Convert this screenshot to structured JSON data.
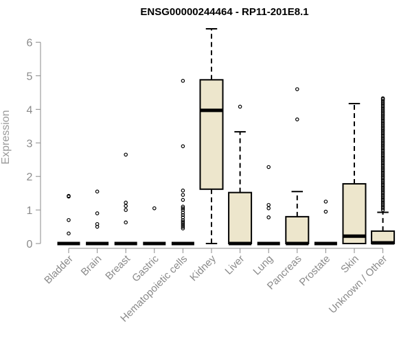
{
  "chart_data": {
    "type": "box",
    "title": "ENSG00000244464 - RP11-201E8.1",
    "xlabel": "",
    "ylabel": "Expression",
    "ylim": [
      0,
      6.4
    ],
    "yticks": [
      0,
      1,
      2,
      3,
      4,
      5,
      6
    ],
    "box_fill": "#ede6cc",
    "categories": [
      "Bladder",
      "Brain",
      "Breast",
      "Gastric",
      "Hematopoietic cells",
      "Kidney",
      "Liver",
      "Lung",
      "Pancreas",
      "Prostate",
      "Skin",
      "Unknown / Other"
    ],
    "series": [
      {
        "q1": 0,
        "median": 0,
        "q3": 0,
        "whisker_low": 0,
        "whisker_high": 0,
        "outliers": [
          0.3,
          0.7,
          1.4,
          1.42
        ]
      },
      {
        "q1": 0,
        "median": 0,
        "q3": 0,
        "whisker_low": 0,
        "whisker_high": 0,
        "outliers": [
          0.5,
          0.58,
          0.9,
          1.55
        ]
      },
      {
        "q1": 0,
        "median": 0,
        "q3": 0,
        "whisker_low": 0,
        "whisker_high": 0,
        "outliers": [
          0.63,
          1.0,
          1.12,
          1.22,
          2.65
        ]
      },
      {
        "q1": 0,
        "median": 0,
        "q3": 0,
        "whisker_low": 0,
        "whisker_high": 0,
        "outliers": [
          1.05
        ]
      },
      {
        "q1": 0,
        "median": 0,
        "q3": 0,
        "whisker_low": 0,
        "whisker_high": 0,
        "outliers": [
          0.45,
          0.5,
          0.55,
          0.6,
          0.65,
          0.7,
          0.78,
          0.85,
          0.92,
          1.0,
          1.05,
          1.1,
          1.3,
          1.45,
          1.58,
          2.9,
          4.85
        ]
      },
      {
        "q1": 1.62,
        "median": 3.97,
        "q3": 4.88,
        "whisker_low": 0,
        "whisker_high": 6.4,
        "outliers": []
      },
      {
        "q1": 0,
        "median": 0,
        "q3": 1.52,
        "whisker_low": 0,
        "whisker_high": 3.33,
        "outliers": [
          4.08
        ]
      },
      {
        "q1": 0,
        "median": 0,
        "q3": 0,
        "whisker_low": 0,
        "whisker_high": 0,
        "outliers": [
          0.78,
          1.05,
          1.15,
          2.28
        ]
      },
      {
        "q1": 0,
        "median": 0,
        "q3": 0.8,
        "whisker_low": 0,
        "whisker_high": 1.55,
        "outliers": [
          3.7,
          4.6
        ]
      },
      {
        "q1": 0,
        "median": 0,
        "q3": 0,
        "whisker_low": 0,
        "whisker_high": 0,
        "outliers": [
          0.95,
          1.25
        ]
      },
      {
        "q1": 0,
        "median": 0.22,
        "q3": 1.78,
        "whisker_low": 0,
        "whisker_high": 4.17,
        "outliers": []
      },
      {
        "q1": 0,
        "median": 0.02,
        "q3": 0.37,
        "whisker_low": 0,
        "whisker_high": 0.93,
        "outliers": [
          1.0,
          1.05,
          1.1,
          1.15,
          1.2,
          1.25,
          1.3,
          1.35,
          1.4,
          1.45,
          1.5,
          1.55,
          1.6,
          1.65,
          1.7,
          1.75,
          1.8,
          1.85,
          1.9,
          1.95,
          2.0,
          2.05,
          2.1,
          2.15,
          2.2,
          2.25,
          2.3,
          2.35,
          2.4,
          2.45,
          2.5,
          2.55,
          2.6,
          2.65,
          2.7,
          2.75,
          2.8,
          2.85,
          2.9,
          2.95,
          3.0,
          3.05,
          3.1,
          3.15,
          3.2,
          3.25,
          3.3,
          3.35,
          3.4,
          3.45,
          3.5,
          3.55,
          3.6,
          3.65,
          3.7,
          3.75,
          3.8,
          3.85,
          3.9,
          3.95,
          4.0,
          4.05,
          4.1,
          4.15,
          4.2,
          4.25,
          4.3,
          4.33
        ]
      }
    ]
  }
}
